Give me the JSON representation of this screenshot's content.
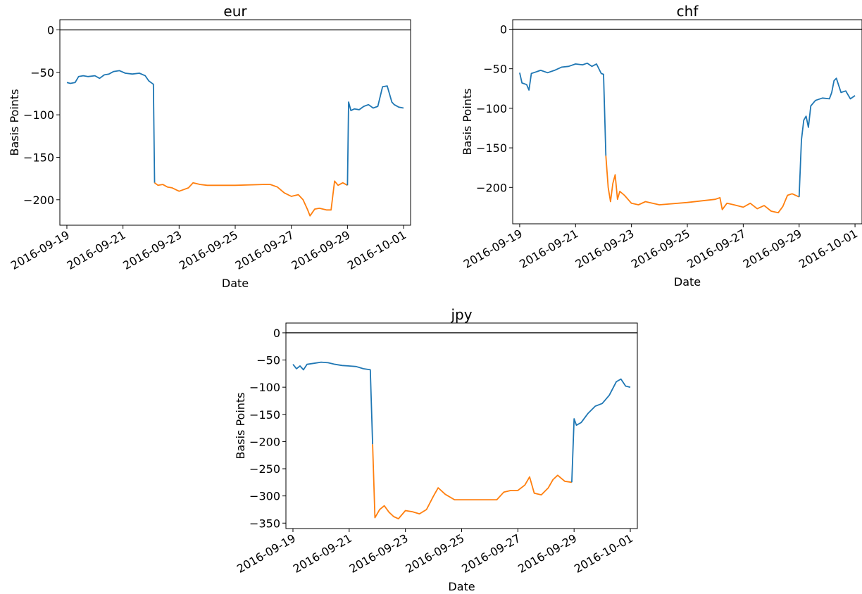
{
  "chart_data": [
    {
      "type": "line",
      "title": "eur",
      "xlabel": "Date",
      "ylabel": "Basis Points",
      "xlim": [
        "2016-09-18 18:00",
        "2016-10-01 06:00"
      ],
      "ylim": [
        -230,
        12
      ],
      "x_ticks": [
        "2016-09-19",
        "2016-09-21",
        "2016-09-23",
        "2016-09-25",
        "2016-09-27",
        "2016-09-29",
        "2016-10-01"
      ],
      "y_ticks": [
        0,
        -50,
        -100,
        -150,
        -200
      ],
      "reference_line": 0,
      "series": [
        {
          "color": "#1f77b4",
          "segment": "before",
          "points": [
            [
              "2016-09-19 00:00",
              -62
            ],
            [
              "2016-09-19 03:00",
              -63
            ],
            [
              "2016-09-19 07:00",
              -62
            ],
            [
              "2016-09-19 10:00",
              -55
            ],
            [
              "2016-09-19 14:00",
              -54
            ],
            [
              "2016-09-19 18:00",
              -55
            ],
            [
              "2016-09-20 00:00",
              -54
            ],
            [
              "2016-09-20 04:00",
              -57
            ],
            [
              "2016-09-20 08:00",
              -53
            ],
            [
              "2016-09-20 12:00",
              -52
            ],
            [
              "2016-09-20 16:00",
              -49
            ],
            [
              "2016-09-20 21:00",
              -48
            ],
            [
              "2016-09-21 02:00",
              -51
            ],
            [
              "2016-09-21 08:00",
              -52
            ],
            [
              "2016-09-21 14:00",
              -51
            ],
            [
              "2016-09-21 19:00",
              -54
            ],
            [
              "2016-09-21 22:00",
              -60
            ],
            [
              "2016-09-22 00:00",
              -62
            ],
            [
              "2016-09-22 02:00",
              -64
            ],
            [
              "2016-09-22 03:00",
              -180
            ]
          ]
        },
        {
          "color": "#ff7f0e",
          "segment": "during",
          "points": [
            [
              "2016-09-22 03:00",
              -180
            ],
            [
              "2016-09-22 06:00",
              -183
            ],
            [
              "2016-09-22 10:00",
              -182
            ],
            [
              "2016-09-22 14:00",
              -185
            ],
            [
              "2016-09-22 18:00",
              -186
            ],
            [
              "2016-09-23 00:00",
              -190
            ],
            [
              "2016-09-23 04:00",
              -188
            ],
            [
              "2016-09-23 08:00",
              -186
            ],
            [
              "2016-09-23 12:00",
              -180
            ],
            [
              "2016-09-23 18:00",
              -182
            ],
            [
              "2016-09-24 00:00",
              -183
            ],
            [
              "2016-09-25 00:00",
              -183
            ],
            [
              "2016-09-26 00:00",
              -182
            ],
            [
              "2016-09-26 06:00",
              -182
            ],
            [
              "2016-09-26 12:00",
              -185
            ],
            [
              "2016-09-26 18:00",
              -192
            ],
            [
              "2016-09-27 00:00",
              -196
            ],
            [
              "2016-09-27 06:00",
              -194
            ],
            [
              "2016-09-27 10:00",
              -200
            ],
            [
              "2016-09-27 14:00",
              -212
            ],
            [
              "2016-09-27 16:00",
              -219
            ],
            [
              "2016-09-27 20:00",
              -211
            ],
            [
              "2016-09-28 00:00",
              -210
            ],
            [
              "2016-09-28 06:00",
              -212
            ],
            [
              "2016-09-28 10:00",
              -212
            ],
            [
              "2016-09-28 13:00",
              -178
            ],
            [
              "2016-09-28 16:00",
              -183
            ],
            [
              "2016-09-28 20:00",
              -180
            ],
            [
              "2016-09-29 00:00",
              -183
            ]
          ]
        },
        {
          "color": "#1f77b4",
          "segment": "after",
          "points": [
            [
              "2016-09-29 00:00",
              -183
            ],
            [
              "2016-09-29 01:00",
              -85
            ],
            [
              "2016-09-29 03:00",
              -95
            ],
            [
              "2016-09-29 06:00",
              -93
            ],
            [
              "2016-09-29 10:00",
              -94
            ],
            [
              "2016-09-29 14:00",
              -90
            ],
            [
              "2016-09-29 18:00",
              -88
            ],
            [
              "2016-09-29 22:00",
              -92
            ],
            [
              "2016-09-30 02:00",
              -90
            ],
            [
              "2016-09-30 06:00",
              -67
            ],
            [
              "2016-09-30 10:00",
              -66
            ],
            [
              "2016-09-30 14:00",
              -85
            ],
            [
              "2016-09-30 16:00",
              -88
            ],
            [
              "2016-09-30 20:00",
              -91
            ],
            [
              "2016-10-01 00:00",
              -92
            ]
          ]
        }
      ]
    },
    {
      "type": "line",
      "title": "chf",
      "xlabel": "Date",
      "ylabel": "Basis Points",
      "xlim": [
        "2016-09-18 18:00",
        "2016-10-01 06:00"
      ],
      "ylim": [
        -246,
        12
      ],
      "x_ticks": [
        "2016-09-19",
        "2016-09-21",
        "2016-09-23",
        "2016-09-25",
        "2016-09-27",
        "2016-09-29",
        "2016-10-01"
      ],
      "y_ticks": [
        0,
        -50,
        -100,
        -150,
        -200
      ],
      "reference_line": 0,
      "series": [
        {
          "color": "#1f77b4",
          "segment": "before",
          "points": [
            [
              "2016-09-19 00:00",
              -55
            ],
            [
              "2016-09-19 02:00",
              -68
            ],
            [
              "2016-09-19 06:00",
              -70
            ],
            [
              "2016-09-19 08:00",
              -77
            ],
            [
              "2016-09-19 10:00",
              -56
            ],
            [
              "2016-09-19 14:00",
              -54
            ],
            [
              "2016-09-19 18:00",
              -52
            ],
            [
              "2016-09-20 00:00",
              -55
            ],
            [
              "2016-09-20 06:00",
              -52
            ],
            [
              "2016-09-20 12:00",
              -48
            ],
            [
              "2016-09-20 18:00",
              -47
            ],
            [
              "2016-09-21 00:00",
              -44
            ],
            [
              "2016-09-21 06:00",
              -45
            ],
            [
              "2016-09-21 10:00",
              -43
            ],
            [
              "2016-09-21 14:00",
              -47
            ],
            [
              "2016-09-21 18:00",
              -44
            ],
            [
              "2016-09-21 22:00",
              -56
            ],
            [
              "2016-09-22 00:00",
              -57
            ],
            [
              "2016-09-22 02:00",
              -160
            ]
          ]
        },
        {
          "color": "#ff7f0e",
          "segment": "during",
          "points": [
            [
              "2016-09-22 02:00",
              -160
            ],
            [
              "2016-09-22 04:00",
              -200
            ],
            [
              "2016-09-22 06:00",
              -218
            ],
            [
              "2016-09-22 08:00",
              -195
            ],
            [
              "2016-09-22 10:00",
              -184
            ],
            [
              "2016-09-22 12:00",
              -215
            ],
            [
              "2016-09-22 14:00",
              -205
            ],
            [
              "2016-09-22 18:00",
              -210
            ],
            [
              "2016-09-23 00:00",
              -220
            ],
            [
              "2016-09-23 06:00",
              -222
            ],
            [
              "2016-09-23 12:00",
              -218
            ],
            [
              "2016-09-23 18:00",
              -220
            ],
            [
              "2016-09-24 00:00",
              -222
            ],
            [
              "2016-09-25 00:00",
              -219
            ],
            [
              "2016-09-26 00:00",
              -215
            ],
            [
              "2016-09-26 04:00",
              -213
            ],
            [
              "2016-09-26 06:00",
              -228
            ],
            [
              "2016-09-26 10:00",
              -220
            ],
            [
              "2016-09-26 16:00",
              -222
            ],
            [
              "2016-09-27 00:00",
              -225
            ],
            [
              "2016-09-27 06:00",
              -220
            ],
            [
              "2016-09-27 12:00",
              -227
            ],
            [
              "2016-09-27 18:00",
              -223
            ],
            [
              "2016-09-28 00:00",
              -230
            ],
            [
              "2016-09-28 06:00",
              -232
            ],
            [
              "2016-09-28 10:00",
              -224
            ],
            [
              "2016-09-28 14:00",
              -210
            ],
            [
              "2016-09-28 18:00",
              -208
            ],
            [
              "2016-09-29 00:00",
              -212
            ]
          ]
        },
        {
          "color": "#1f77b4",
          "segment": "after",
          "points": [
            [
              "2016-09-29 00:00",
              -212
            ],
            [
              "2016-09-29 02:00",
              -140
            ],
            [
              "2016-09-29 04:00",
              -115
            ],
            [
              "2016-09-29 06:00",
              -110
            ],
            [
              "2016-09-29 08:00",
              -124
            ],
            [
              "2016-09-29 10:00",
              -97
            ],
            [
              "2016-09-29 14:00",
              -90
            ],
            [
              "2016-09-29 20:00",
              -87
            ],
            [
              "2016-09-30 02:00",
              -88
            ],
            [
              "2016-09-30 04:00",
              -80
            ],
            [
              "2016-09-30 06:00",
              -65
            ],
            [
              "2016-09-30 08:00",
              -62
            ],
            [
              "2016-09-30 12:00",
              -80
            ],
            [
              "2016-09-30 16:00",
              -78
            ],
            [
              "2016-09-30 20:00",
              -88
            ],
            [
              "2016-10-01 00:00",
              -84
            ]
          ]
        }
      ]
    },
    {
      "type": "line",
      "title": "jpy",
      "xlabel": "Date",
      "ylabel": "Basis Points",
      "xlim": [
        "2016-09-18 18:00",
        "2016-10-01 06:00"
      ],
      "ylim": [
        -360,
        18
      ],
      "x_ticks": [
        "2016-09-19",
        "2016-09-21",
        "2016-09-23",
        "2016-09-25",
        "2016-09-27",
        "2016-09-29",
        "2016-10-01"
      ],
      "y_ticks": [
        0,
        -50,
        -100,
        -150,
        -200,
        -250,
        -300,
        -350
      ],
      "reference_line": 0,
      "series": [
        {
          "color": "#1f77b4",
          "segment": "before",
          "points": [
            [
              "2016-09-19 00:00",
              -58
            ],
            [
              "2016-09-19 03:00",
              -66
            ],
            [
              "2016-09-19 06:00",
              -61
            ],
            [
              "2016-09-19 09:00",
              -68
            ],
            [
              "2016-09-19 12:00",
              -58
            ],
            [
              "2016-09-19 18:00",
              -56
            ],
            [
              "2016-09-20 00:00",
              -54
            ],
            [
              "2016-09-20 06:00",
              -55
            ],
            [
              "2016-09-20 12:00",
              -58
            ],
            [
              "2016-09-20 18:00",
              -60
            ],
            [
              "2016-09-21 00:00",
              -61
            ],
            [
              "2016-09-21 06:00",
              -62
            ],
            [
              "2016-09-21 12:00",
              -66
            ],
            [
              "2016-09-21 18:00",
              -68
            ],
            [
              "2016-09-21 20:00",
              -205
            ]
          ]
        },
        {
          "color": "#ff7f0e",
          "segment": "during",
          "points": [
            [
              "2016-09-21 20:00",
              -205
            ],
            [
              "2016-09-21 22:00",
              -340
            ],
            [
              "2016-09-22 02:00",
              -325
            ],
            [
              "2016-09-22 06:00",
              -318
            ],
            [
              "2016-09-22 10:00",
              -330
            ],
            [
              "2016-09-22 14:00",
              -338
            ],
            [
              "2016-09-22 18:00",
              -342
            ],
            [
              "2016-09-23 00:00",
              -327
            ],
            [
              "2016-09-23 06:00",
              -329
            ],
            [
              "2016-09-23 12:00",
              -333
            ],
            [
              "2016-09-23 18:00",
              -325
            ],
            [
              "2016-09-24 00:00",
              -300
            ],
            [
              "2016-09-24 04:00",
              -285
            ],
            [
              "2016-09-24 10:00",
              -297
            ],
            [
              "2016-09-24 18:00",
              -307
            ],
            [
              "2016-09-25 00:00",
              -307
            ],
            [
              "2016-09-26 00:00",
              -307
            ],
            [
              "2016-09-26 06:00",
              -307
            ],
            [
              "2016-09-26 12:00",
              -293
            ],
            [
              "2016-09-26 18:00",
              -290
            ],
            [
              "2016-09-27 00:00",
              -290
            ],
            [
              "2016-09-27 06:00",
              -280
            ],
            [
              "2016-09-27 10:00",
              -265
            ],
            [
              "2016-09-27 14:00",
              -295
            ],
            [
              "2016-09-27 20:00",
              -298
            ],
            [
              "2016-09-28 02:00",
              -285
            ],
            [
              "2016-09-28 06:00",
              -270
            ],
            [
              "2016-09-28 10:00",
              -262
            ],
            [
              "2016-09-28 16:00",
              -273
            ],
            [
              "2016-09-28 22:00",
              -275
            ]
          ]
        },
        {
          "color": "#1f77b4",
          "segment": "after",
          "points": [
            [
              "2016-09-28 22:00",
              -275
            ],
            [
              "2016-09-29 00:00",
              -158
            ],
            [
              "2016-09-29 02:00",
              -170
            ],
            [
              "2016-09-29 06:00",
              -165
            ],
            [
              "2016-09-29 12:00",
              -148
            ],
            [
              "2016-09-29 18:00",
              -135
            ],
            [
              "2016-09-30 00:00",
              -130
            ],
            [
              "2016-09-30 06:00",
              -115
            ],
            [
              "2016-09-30 12:00",
              -90
            ],
            [
              "2016-09-30 16:00",
              -85
            ],
            [
              "2016-09-30 20:00",
              -98
            ],
            [
              "2016-10-01 00:00",
              -100
            ]
          ]
        }
      ]
    }
  ]
}
